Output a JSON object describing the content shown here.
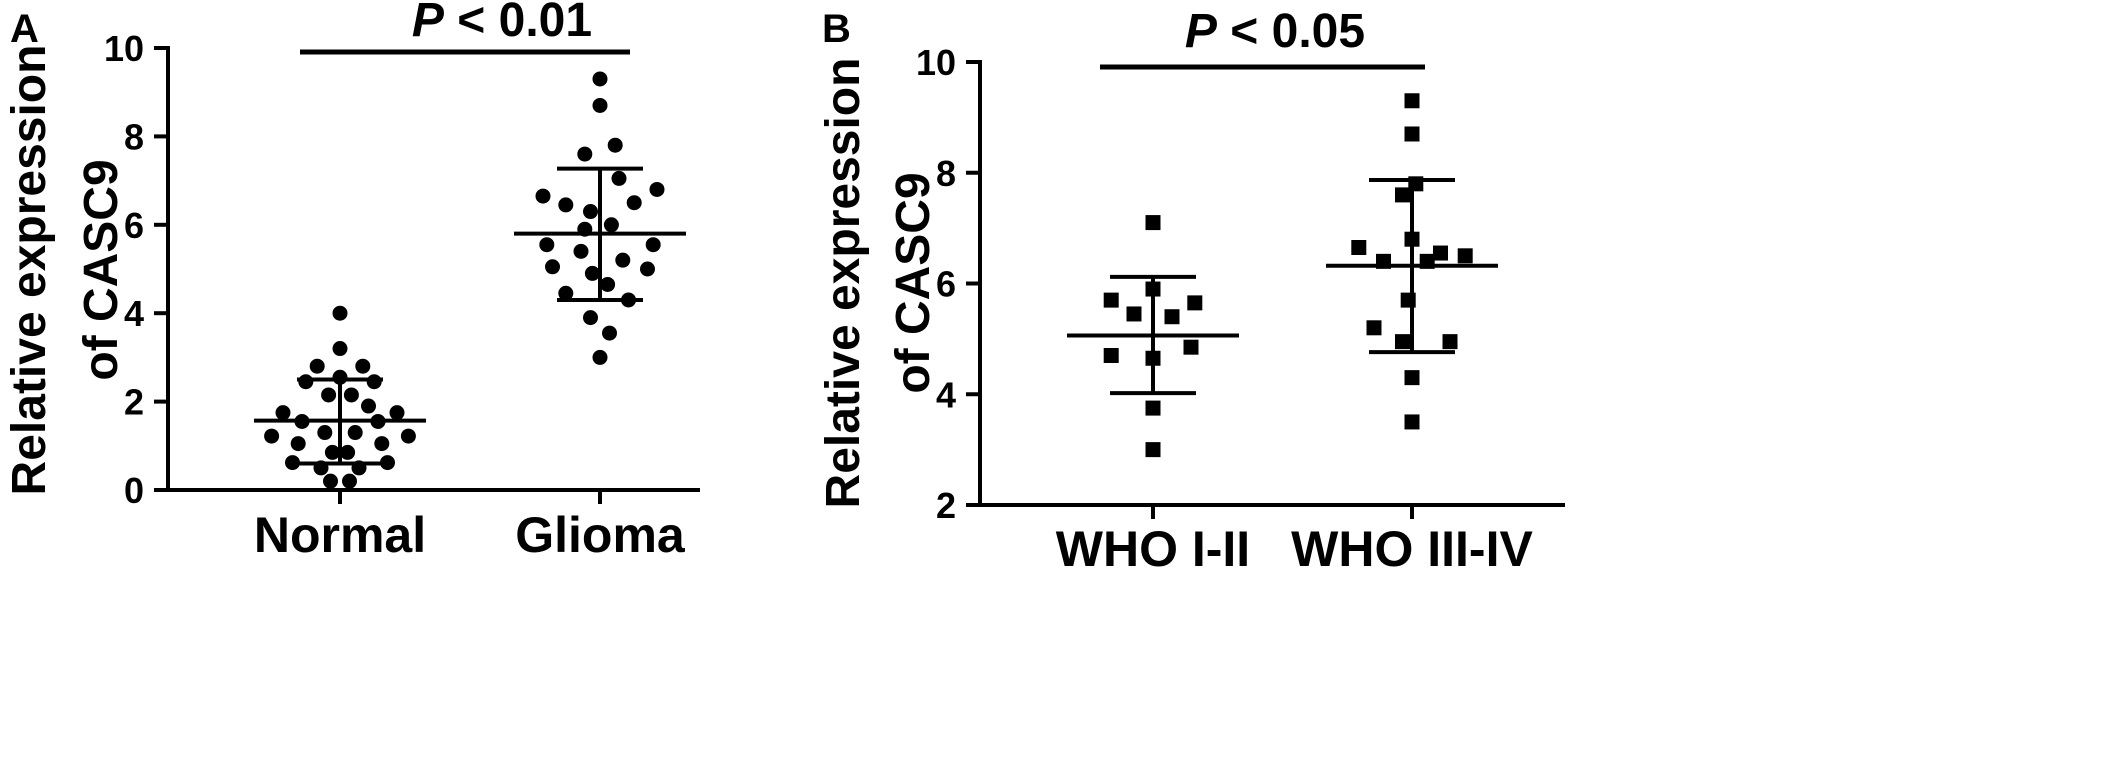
{
  "chart_data": [
    {
      "panel": "A",
      "type": "scatter",
      "marker": "circle",
      "ylabel_lines": [
        "Relative expression",
        "of CASC9"
      ],
      "ylim": [
        0,
        10
      ],
      "yticks": [
        0,
        2,
        4,
        6,
        8,
        10
      ],
      "categories": [
        "Normal",
        "Glioma"
      ],
      "significance": {
        "p_symbol": "P",
        "p_text": " < 0.01"
      },
      "series": [
        {
          "category": "Normal",
          "mean": 1.57,
          "sd_low": 0.6,
          "sd_high": 2.5,
          "points": [
            {
              "dx": 0.0,
              "y": 4.0
            },
            {
              "dx": 0.0,
              "y": 3.2
            },
            {
              "dx": -0.12,
              "y": 2.8
            },
            {
              "dx": 0.12,
              "y": 2.8
            },
            {
              "dx": -0.18,
              "y": 2.45
            },
            {
              "dx": 0.0,
              "y": 2.55
            },
            {
              "dx": 0.18,
              "y": 2.45
            },
            {
              "dx": -0.06,
              "y": 2.15
            },
            {
              "dx": 0.06,
              "y": 2.15
            },
            {
              "dx": -0.3,
              "y": 1.75
            },
            {
              "dx": 0.3,
              "y": 1.75
            },
            {
              "dx": 0.15,
              "y": 1.9
            },
            {
              "dx": -0.2,
              "y": 1.55
            },
            {
              "dx": 0.2,
              "y": 1.55
            },
            {
              "dx": -0.08,
              "y": 1.3
            },
            {
              "dx": 0.08,
              "y": 1.3
            },
            {
              "dx": -0.36,
              "y": 1.22
            },
            {
              "dx": 0.36,
              "y": 1.22
            },
            {
              "dx": -0.22,
              "y": 1.05
            },
            {
              "dx": 0.22,
              "y": 1.05
            },
            {
              "dx": -0.04,
              "y": 0.85
            },
            {
              "dx": 0.04,
              "y": 0.85
            },
            {
              "dx": -0.25,
              "y": 0.62
            },
            {
              "dx": 0.25,
              "y": 0.62
            },
            {
              "dx": -0.1,
              "y": 0.5
            },
            {
              "dx": 0.1,
              "y": 0.5
            },
            {
              "dx": -0.05,
              "y": 0.2
            },
            {
              "dx": 0.05,
              "y": 0.2
            }
          ]
        },
        {
          "category": "Glioma",
          "mean": 5.8,
          "sd_low": 4.3,
          "sd_high": 7.27,
          "points": [
            {
              "dx": 0.0,
              "y": 9.3
            },
            {
              "dx": 0.0,
              "y": 8.7
            },
            {
              "dx": 0.08,
              "y": 7.8
            },
            {
              "dx": -0.08,
              "y": 7.6
            },
            {
              "dx": 0.1,
              "y": 7.05
            },
            {
              "dx": -0.3,
              "y": 6.65
            },
            {
              "dx": 0.3,
              "y": 6.8
            },
            {
              "dx": -0.18,
              "y": 6.45
            },
            {
              "dx": 0.18,
              "y": 6.5
            },
            {
              "dx": -0.05,
              "y": 6.3
            },
            {
              "dx": 0.06,
              "y": 6.0
            },
            {
              "dx": -0.08,
              "y": 5.9
            },
            {
              "dx": -0.28,
              "y": 5.55
            },
            {
              "dx": 0.28,
              "y": 5.55
            },
            {
              "dx": -0.1,
              "y": 5.4
            },
            {
              "dx": 0.12,
              "y": 5.2
            },
            {
              "dx": -0.25,
              "y": 5.05
            },
            {
              "dx": 0.25,
              "y": 5.0
            },
            {
              "dx": -0.04,
              "y": 4.9
            },
            {
              "dx": 0.04,
              "y": 4.65
            },
            {
              "dx": -0.18,
              "y": 4.45
            },
            {
              "dx": 0.15,
              "y": 4.3
            },
            {
              "dx": -0.05,
              "y": 3.9
            },
            {
              "dx": 0.05,
              "y": 3.55
            },
            {
              "dx": 0.0,
              "y": 3.0
            }
          ]
        }
      ]
    },
    {
      "panel": "B",
      "type": "scatter",
      "marker": "square",
      "ylabel_lines": [
        "Relative expression",
        "of CASC9"
      ],
      "ylim": [
        2,
        10
      ],
      "yticks": [
        2,
        4,
        6,
        8,
        10
      ],
      "categories": [
        "WHO I-II",
        "WHO III-IV"
      ],
      "significance": {
        "p_symbol": "P",
        "p_text": " < 0.05"
      },
      "series": [
        {
          "category": "WHO I-II",
          "mean": 5.06,
          "sd_low": 4.02,
          "sd_high": 6.12,
          "points": [
            {
              "dx": 0.0,
              "y": 7.1
            },
            {
              "dx": 0.0,
              "y": 5.9
            },
            {
              "dx": -0.22,
              "y": 5.7
            },
            {
              "dx": 0.22,
              "y": 5.65
            },
            {
              "dx": -0.1,
              "y": 5.45
            },
            {
              "dx": 0.1,
              "y": 5.4
            },
            {
              "dx": -0.22,
              "y": 4.7
            },
            {
              "dx": 0.0,
              "y": 4.65
            },
            {
              "dx": 0.2,
              "y": 4.85
            },
            {
              "dx": 0.0,
              "y": 3.75
            },
            {
              "dx": 0.0,
              "y": 3.0
            }
          ]
        },
        {
          "category": "WHO III-IV",
          "mean": 6.32,
          "sd_low": 4.76,
          "sd_high": 7.87,
          "points": [
            {
              "dx": 0.0,
              "y": 9.3
            },
            {
              "dx": 0.0,
              "y": 8.7
            },
            {
              "dx": 0.02,
              "y": 7.8
            },
            {
              "dx": -0.05,
              "y": 7.6
            },
            {
              "dx": 0.0,
              "y": 6.8
            },
            {
              "dx": -0.28,
              "y": 6.65
            },
            {
              "dx": 0.15,
              "y": 6.55
            },
            {
              "dx": 0.28,
              "y": 6.5
            },
            {
              "dx": -0.15,
              "y": 6.4
            },
            {
              "dx": 0.08,
              "y": 6.4
            },
            {
              "dx": -0.02,
              "y": 5.7
            },
            {
              "dx": -0.2,
              "y": 5.2
            },
            {
              "dx": 0.2,
              "y": 4.95
            },
            {
              "dx": -0.05,
              "y": 4.95
            },
            {
              "dx": 0.0,
              "y": 4.3
            },
            {
              "dx": 0.0,
              "y": 3.5
            }
          ]
        }
      ]
    }
  ]
}
